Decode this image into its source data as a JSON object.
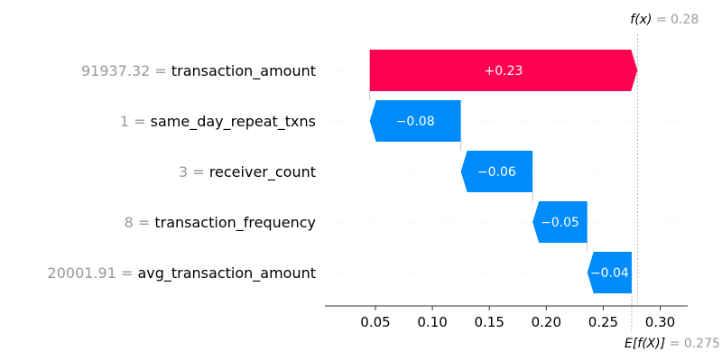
{
  "chart_data": {
    "type": "waterfall",
    "fx": {
      "label": "f(x)",
      "value": "0.28",
      "x": 0.28
    },
    "base": {
      "label": "E[f(X)]",
      "value": "0.275",
      "x": 0.275
    },
    "features": [
      {
        "value_text": "91937.32",
        "name": "transaction_amount",
        "contribution_label": "+0.23",
        "start": 0.045,
        "end": 0.28,
        "direction": "positive"
      },
      {
        "value_text": "1",
        "name": "same_day_repeat_txns",
        "contribution_label": "−0.08",
        "start": 0.125,
        "end": 0.045,
        "direction": "negative"
      },
      {
        "value_text": "3",
        "name": "receiver_count",
        "contribution_label": "−0.06",
        "start": 0.188,
        "end": 0.125,
        "direction": "negative"
      },
      {
        "value_text": "8",
        "name": "transaction_frequency",
        "contribution_label": "−0.05",
        "start": 0.236,
        "end": 0.188,
        "direction": "negative"
      },
      {
        "value_text": "20001.91",
        "name": "avg_transaction_amount",
        "contribution_label": "−0.04",
        "start": 0.275,
        "end": 0.236,
        "direction": "negative"
      }
    ],
    "xticks": [
      "0.05",
      "0.10",
      "0.15",
      "0.20",
      "0.25",
      "0.30"
    ],
    "xlim": [
      0.0,
      0.32
    ],
    "colors": {
      "positive": "#ff0051",
      "negative": "#008bfb"
    }
  }
}
